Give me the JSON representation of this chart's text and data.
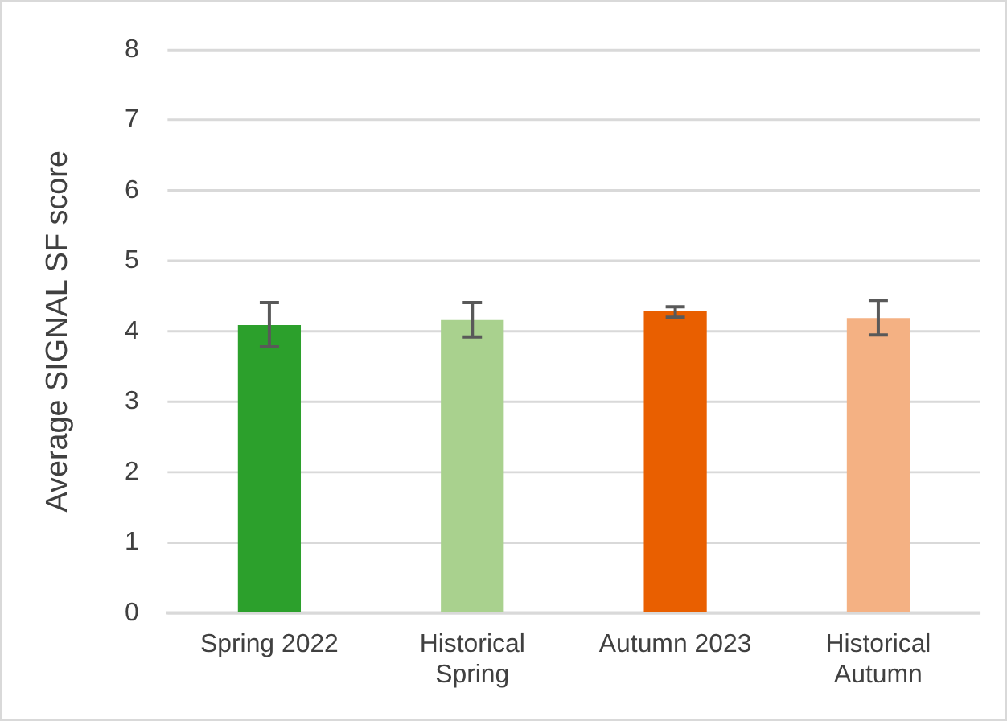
{
  "chart_data": {
    "type": "bar",
    "ylabel": "Average SIGNAL SF score",
    "categories": [
      "Spring 2022",
      "Historical Spring",
      "Autumn 2023",
      "Historical Autumn"
    ],
    "values": [
      4.09,
      4.16,
      4.29,
      4.19
    ],
    "colors": [
      "#2ca02c",
      "#a9d18e",
      "#e95f00",
      "#f4b183"
    ],
    "errors": [
      [
        3.78,
        4.41
      ],
      [
        3.92,
        4.41
      ],
      [
        4.2,
        4.35
      ],
      [
        3.95,
        4.44
      ]
    ],
    "ylim": [
      0,
      8
    ],
    "yticks": [
      0,
      1,
      2,
      3,
      4,
      5,
      6,
      7,
      8
    ],
    "grid": "y",
    "legend": false
  }
}
